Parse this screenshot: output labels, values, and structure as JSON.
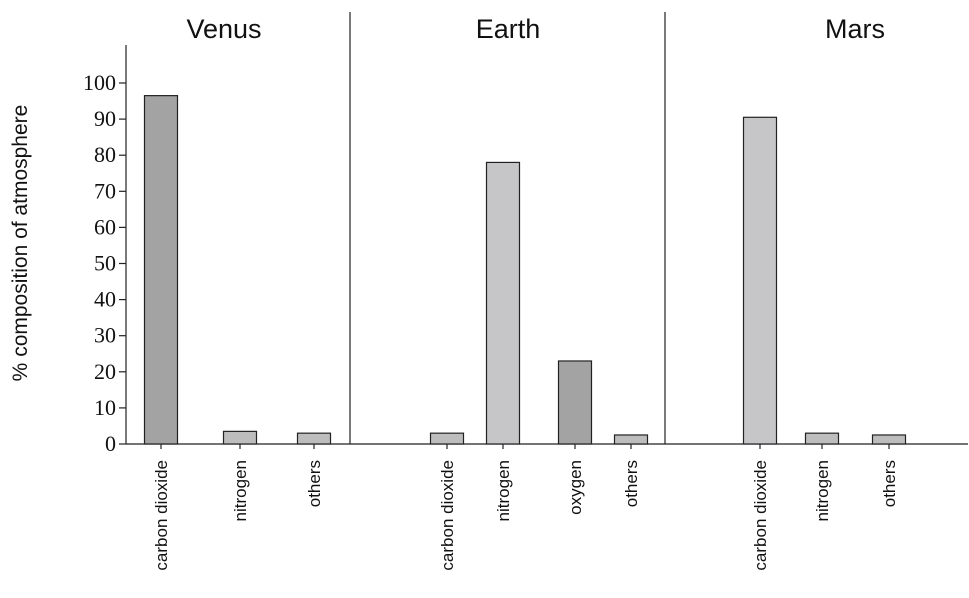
{
  "chart_data": {
    "type": "bar",
    "ylabel": "% composition of atmosphere",
    "ylim": [
      0,
      100
    ],
    "yticks": [
      0,
      10,
      20,
      30,
      40,
      50,
      60,
      70,
      80,
      90,
      100
    ],
    "grid": false,
    "panels": [
      {
        "title": "Venus",
        "bars": [
          {
            "category": "carbon dioxide",
            "value": 96.5,
            "color": "#a3a3a3"
          },
          {
            "category": "nitrogen",
            "value": 3.5,
            "color": "#bdbdbd"
          },
          {
            "category": "others",
            "value": 3.0,
            "color": "#bdbdbd"
          }
        ]
      },
      {
        "title": "Earth",
        "bars": [
          {
            "category": "carbon dioxide",
            "value": 3.0,
            "color": "#bdbdbd"
          },
          {
            "category": "nitrogen",
            "value": 78,
            "color": "#c6c6c9"
          },
          {
            "category": "oxygen",
            "value": 23,
            "color": "#a3a3a3"
          },
          {
            "category": "others",
            "value": 2.5,
            "color": "#bdbdbd"
          }
        ]
      },
      {
        "title": "Mars",
        "bars": [
          {
            "category": "carbon dioxide",
            "value": 90.5,
            "color": "#c6c6c9"
          },
          {
            "category": "nitrogen",
            "value": 3.0,
            "color": "#bdbdbd"
          },
          {
            "category": "others",
            "value": 2.5,
            "color": "#bdbdbd"
          }
        ]
      }
    ]
  }
}
